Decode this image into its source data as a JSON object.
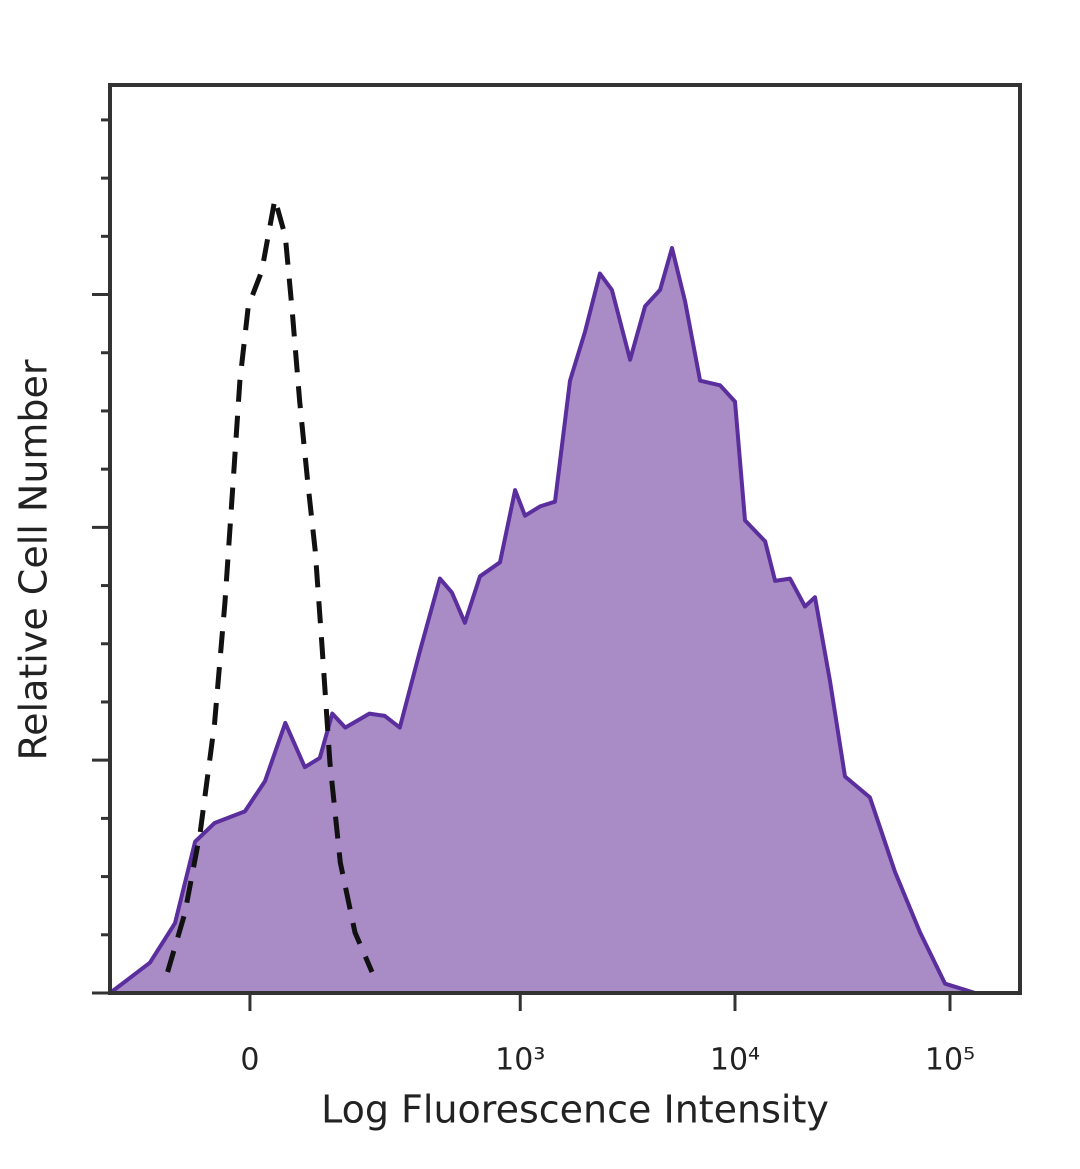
{
  "chart_data": {
    "type": "histogram-overlay",
    "x_label": "Log Fluorescence Intensity",
    "y_label": "Relative Cell Number",
    "xscale": "biexponential",
    "xlim": [
      -236,
      211600
    ],
    "xticks": [
      0,
      {
        "value": 1000,
        "label": "10³"
      },
      {
        "value": 10000,
        "label": "10⁴"
      },
      {
        "value": 100000,
        "label": "10⁵"
      }
    ],
    "ylim": [
      0,
      3.9
    ],
    "yticks": [
      0,
      0.25,
      0.5,
      0.75,
      1,
      1.25,
      1.5,
      1.75,
      2,
      2.25,
      2.5,
      2.75,
      3,
      3.25,
      3.5,
      3.75
    ],
    "series": [
      {
        "color": "#5b2e9e",
        "fill": "#a98cc6",
        "dashed": false,
        "x": [
          -236,
          -143,
          -99,
          -69,
          -43,
          -6,
          18,
          43,
          69,
          91,
          111,
          134,
          184,
          222,
          265,
          334,
          417,
          476,
          549,
          647,
          804,
          946,
          1053,
          1238,
          1454,
          1707,
          2005,
          2353,
          2675,
          3252,
          3818,
          4484,
          5095,
          5861,
          6882,
          8525,
          10000,
          11130,
          13800,
          15360,
          18030,
          21170,
          23550,
          27660,
          32470,
          42400,
          55500,
          72600,
          94900,
          130900
        ],
        "values": [
          0,
          0.13,
          0.3,
          0.65,
          0.73,
          0.78,
          0.91,
          1.16,
          0.97,
          1.01,
          1.2,
          1.14,
          1.2,
          1.19,
          1.14,
          1.47,
          1.78,
          1.72,
          1.59,
          1.79,
          1.85,
          2.16,
          2.05,
          2.09,
          2.11,
          2.63,
          2.84,
          3.09,
          3.02,
          2.72,
          2.95,
          3.02,
          3.2,
          2.97,
          2.63,
          2.61,
          2.54,
          2.03,
          1.94,
          1.77,
          1.78,
          1.66,
          1.7,
          1.34,
          0.93,
          0.84,
          0.52,
          0.26,
          0.04,
          0
        ]
      },
      {
        "color": "#111111",
        "fill": "none",
        "dashed": true,
        "x": [
          -111,
          -84,
          -62,
          -43,
          -30,
          -20,
          -12,
          -2,
          14,
          30,
          43,
          52,
          62,
          73,
          84,
          94,
          107,
          125,
          153,
          190
        ],
        "values": [
          0.09,
          0.34,
          0.69,
          1.16,
          1.68,
          2.2,
          2.63,
          2.95,
          3.1,
          3.41,
          3.25,
          2.93,
          2.54,
          2.2,
          1.9,
          1.51,
          0.99,
          0.56,
          0.26,
          0.09
        ]
      }
    ]
  }
}
